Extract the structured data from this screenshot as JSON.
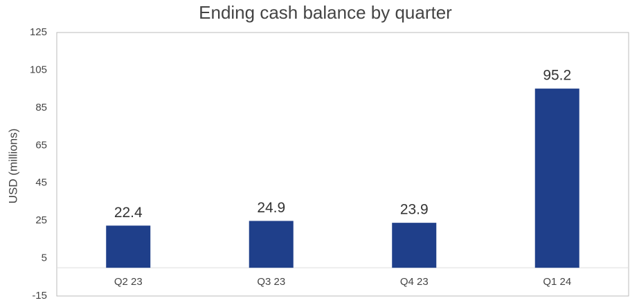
{
  "chart_data": {
    "type": "bar",
    "title": "Ending cash balance by quarter",
    "y_label": "USD (millions)",
    "categories": [
      "Q2 23",
      "Q3 23",
      "Q4 23",
      "Q1 24"
    ],
    "values": [
      22.4,
      24.9,
      23.9,
      95.2
    ],
    "color": "#1f3f8a",
    "ylim": [
      -15,
      125
    ],
    "yticks": [
      -15,
      5,
      25,
      45,
      65,
      85,
      105,
      125
    ],
    "grid": false
  }
}
